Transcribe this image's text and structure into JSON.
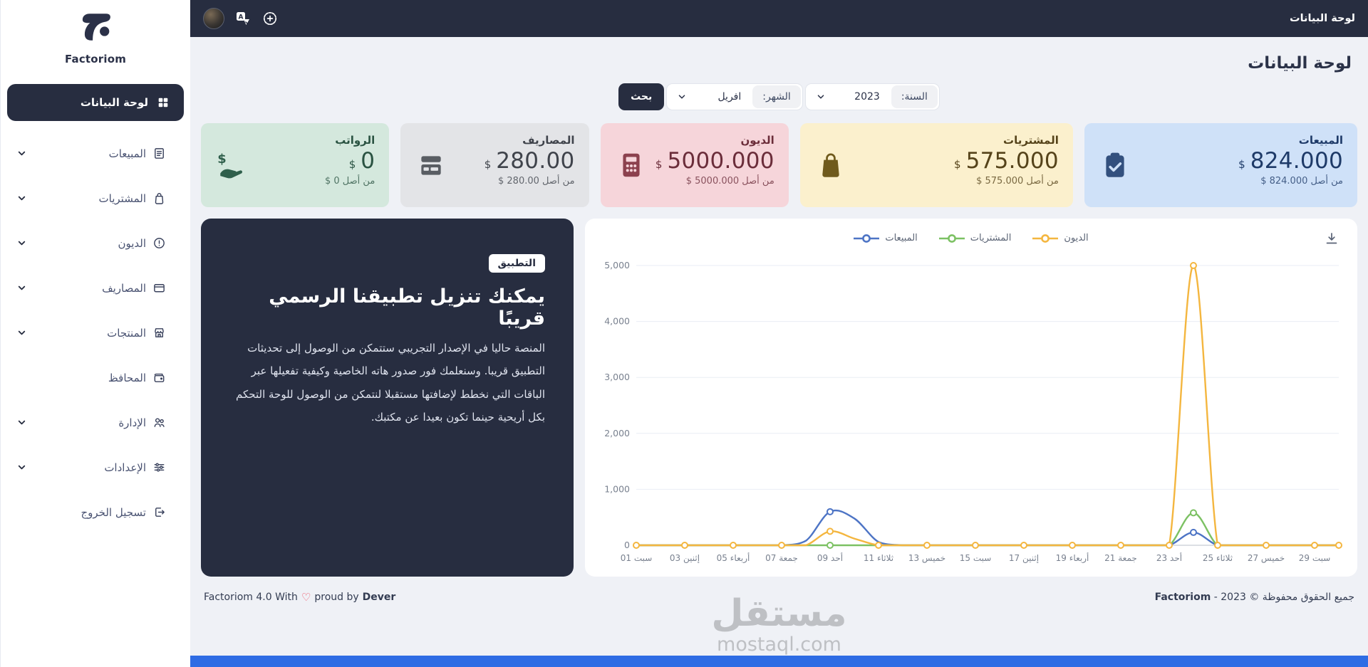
{
  "brand": {
    "name": "Factoriom"
  },
  "topbar": {
    "title": "لوحة البيانات"
  },
  "page": {
    "title": "لوحة البيانات"
  },
  "sidebar": {
    "active": {
      "label": "لوحة البيانات"
    },
    "items": [
      {
        "label": "المبيعات"
      },
      {
        "label": "المشتريات"
      },
      {
        "label": "الديون"
      },
      {
        "label": "المصاريف"
      },
      {
        "label": "المنتجات"
      },
      {
        "label": "المحافظ"
      },
      {
        "label": "الإدارة"
      },
      {
        "label": "الإعدادات"
      },
      {
        "label": "تسجيل الخروج"
      }
    ]
  },
  "filters": {
    "year_label": "السنة:",
    "year_value": "2023",
    "month_label": "الشهر:",
    "month_value": "افريل",
    "search_label": "بحث"
  },
  "cards": [
    {
      "title": "المبيعات",
      "value": "824.000",
      "currency": "$",
      "subtext": "من أصل 824.000 $",
      "bg": "#cfe1f8",
      "fg": "#1e3a68",
      "icon_color": "#33507e"
    },
    {
      "title": "المشتريات",
      "value": "575.000",
      "currency": "$",
      "subtext": "من أصل 575.000 $",
      "bg": "#fbf0cd",
      "fg": "#55431a",
      "icon_color": "#6f5a1c"
    },
    {
      "title": "الديون",
      "value": "5000.000",
      "currency": "$",
      "subtext": "من أصل 5000.000 $",
      "bg": "#f6d5da",
      "fg": "#6b2d3a",
      "icon_color": "#8c414e"
    },
    {
      "title": "المصاريف",
      "value": "280.00",
      "currency": "$",
      "subtext": "من أصل 280.00 $",
      "bg": "#e3e4e7",
      "fg": "#3f434b",
      "icon_color": "#595d63"
    },
    {
      "title": "الرواتب",
      "value": "0",
      "currency": "$",
      "subtext": "من أصل 0 $",
      "bg": "#d4e8dd",
      "fg": "#2a5342",
      "icon_color": "#2f5f4b"
    }
  ],
  "promo": {
    "badge": "التطبيق",
    "title": "يمكنك تنزيل تطبيقنا الرسمي قريبًا",
    "body": "المنصة حاليا في الإصدار التجريبي ستتمكن من الوصول إلى تحديثات التطبيق قريبا. وسنعلمك فور صدور هاته الخاصية وكيفية تفعيلها عبر الباقات التي نخطط لإضافتها مستقبلا لنتمكن من الوصول للوحة التحكم بكل أريحية حينما تكون بعيدا عن مكتبك."
  },
  "chart_data": {
    "type": "line",
    "days": 30,
    "ylim": [
      0,
      5000
    ],
    "yticks": [
      0,
      1000,
      2000,
      3000,
      4000,
      5000
    ],
    "grid": true,
    "legend_position": "top-center",
    "x_labels": [
      "01 سبت",
      "03 إثنين",
      "05 أربعاء",
      "07 جمعة",
      "09 أحد",
      "11 ثلاثاء",
      "13 خميس",
      "15 سبت",
      "17 إثنين",
      "19 أربعاء",
      "21 جمعة",
      "23 أحد",
      "25 ثلاثاء",
      "27 خميس",
      "29 سبت"
    ],
    "legend": [
      {
        "name": "الديون",
        "color": "#f4b63f"
      },
      {
        "name": "المشتريات",
        "color": "#7cc163"
      },
      {
        "name": "المبيعات",
        "color": "#4d74c5"
      }
    ],
    "series": [
      {
        "name": "المبيعات",
        "color": "#4d74c5",
        "markers": [
          9,
          24
        ],
        "values": [
          0,
          0,
          0,
          0,
          0,
          0,
          0,
          80,
          600,
          480,
          60,
          0,
          0,
          0,
          0,
          0,
          0,
          0,
          0,
          0,
          0,
          0,
          0,
          230,
          0,
          0,
          0,
          0,
          0,
          0
        ]
      },
      {
        "name": "المشتريات",
        "color": "#7cc163",
        "markers": [
          9,
          24
        ],
        "values": [
          0,
          0,
          0,
          0,
          0,
          0,
          0,
          0,
          0,
          0,
          0,
          0,
          0,
          0,
          0,
          0,
          0,
          0,
          0,
          0,
          0,
          0,
          0,
          580,
          0,
          0,
          0,
          0,
          0,
          0
        ]
      },
      {
        "name": "الديون",
        "color": "#f4b63f",
        "markers": [
          1,
          3,
          5,
          7,
          9,
          11,
          13,
          15,
          17,
          19,
          21,
          23,
          24,
          25,
          27,
          29,
          30
        ],
        "values": [
          0,
          0,
          0,
          0,
          0,
          0,
          0,
          0,
          250,
          120,
          0,
          0,
          0,
          0,
          0,
          0,
          0,
          0,
          0,
          0,
          0,
          0,
          0,
          5000,
          0,
          0,
          0,
          0,
          0,
          0
        ]
      }
    ]
  },
  "footer": {
    "left_prefix": "Factoriom 4.0 With",
    "heart": "♡",
    "left_middle": "proud by",
    "left_brand": "Dever",
    "right_text": "جميع الحقوق محفوظة © 2023 - ",
    "right_brand": "Factoriom"
  },
  "watermark": {
    "line1": "مستقل",
    "line2": "mostaql.com"
  }
}
